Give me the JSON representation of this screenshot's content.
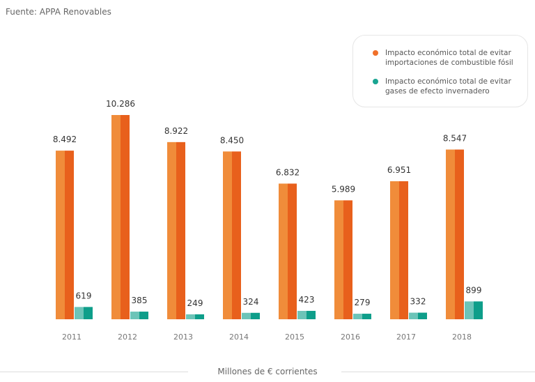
{
  "source": "Fuente: APPA Renovables",
  "chart_data": {
    "type": "bar",
    "categories": [
      "2011",
      "2012",
      "2013",
      "2014",
      "2015",
      "2016",
      "2017",
      "2018"
    ],
    "series": [
      {
        "name": "Impacto económico total de evitar importaciones de combustible fósil",
        "values": [
          8492,
          10286,
          8922,
          8450,
          6832,
          5989,
          6951,
          8547
        ],
        "labels": [
          "8.492",
          "10.286",
          "8.922",
          "8.450",
          "6.832",
          "5.989",
          "6.951",
          "8.547"
        ],
        "color": "#e8601c",
        "color_light": "#f08c3a"
      },
      {
        "name": "Impacto económico total de evitar gases de efecto invernadero",
        "values": [
          619,
          385,
          249,
          324,
          423,
          279,
          332,
          899
        ],
        "labels": [
          "619",
          "385",
          "249",
          "324",
          "423",
          "279",
          "332",
          "899"
        ],
        "color": "#0e9e8a",
        "color_light": "#6cc4b8"
      }
    ],
    "xlabel": "Millones de € corrientes",
    "ylim": [
      0,
      10286
    ],
    "grid": false,
    "legend_placement": "top-right"
  }
}
